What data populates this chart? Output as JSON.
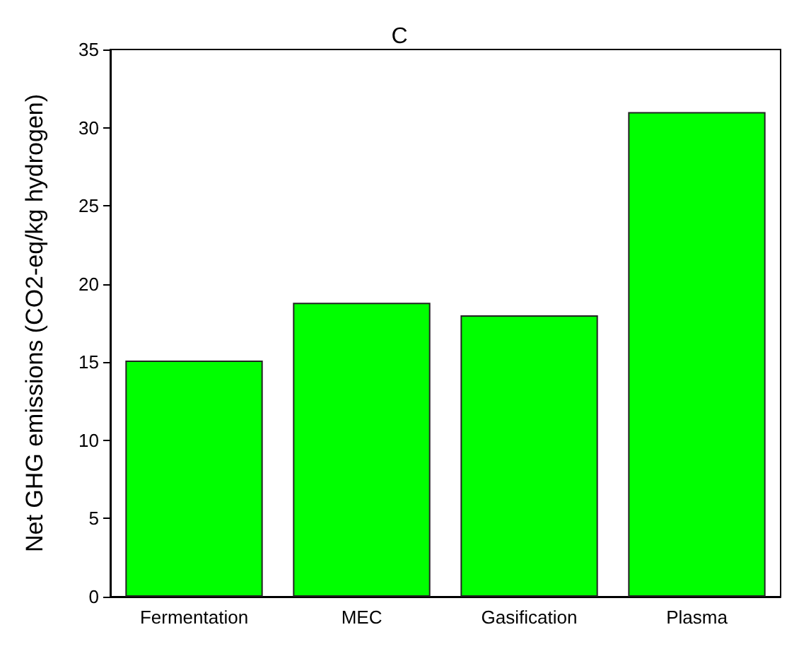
{
  "chart_data": {
    "type": "bar",
    "title": "C",
    "ylabel": "Net GHG emissions (CO2-eq/kg hydrogen)",
    "categories": [
      "Fermentation",
      "MEC",
      "Gasification",
      "Plasma"
    ],
    "values": [
      15.1,
      18.8,
      18.0,
      31.0
    ],
    "color": "#00ff00",
    "ylim": [
      0,
      35
    ],
    "yticks": [
      0,
      5,
      10,
      15,
      20,
      25,
      30,
      35
    ],
    "grid": false
  }
}
